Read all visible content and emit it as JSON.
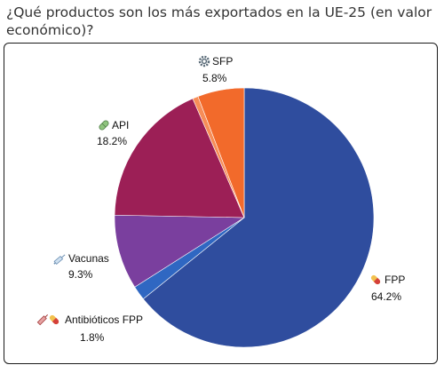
{
  "title": "¿Qué productos son los más exportados en la UE-25 (en valor económico)?",
  "colors": {
    "FPP": "#2f4d9e",
    "Antibioticos": "#2f67c2",
    "Vacunas": "#7a3f9e",
    "API": "#9c1f56",
    "thin": "#f78d57",
    "SFP": "#f26a2b"
  },
  "chart_data": {
    "type": "pie",
    "title": "¿Qué productos son los más exportados en la UE-25 (en valor económico)?",
    "start": "12 o'clock, clockwise",
    "slices": [
      {
        "name": "FPP",
        "value": 64.2,
        "label": "64.2%",
        "color": "#2f4d9e",
        "icon": "pill-capsule-icon"
      },
      {
        "name": "Antibióticos FPP",
        "value": 1.8,
        "label": "1.8%",
        "color": "#2f67c2",
        "icon": "antibiotics-icon"
      },
      {
        "name": "Vacunas",
        "value": 9.3,
        "label": "9.3%",
        "color": "#7a3f9e",
        "icon": "syringe-icon"
      },
      {
        "name": "API",
        "value": 18.2,
        "label": "18.2%",
        "color": "#9c1f56",
        "icon": "capsule-icon"
      },
      {
        "name": "",
        "value": 0.7,
        "label": "",
        "color": "#f78d57",
        "icon": ""
      },
      {
        "name": "SFP",
        "value": 5.8,
        "label": "5.8%",
        "color": "#f26a2b",
        "icon": "gear-icon"
      }
    ]
  }
}
